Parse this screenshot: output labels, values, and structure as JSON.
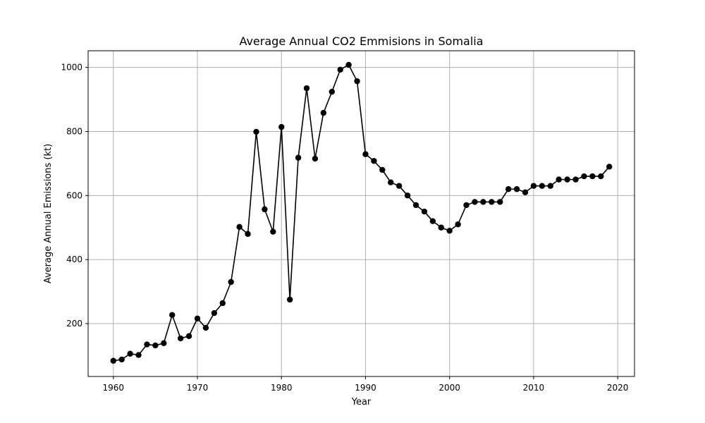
{
  "chart_data": {
    "type": "line",
    "title": "Average Annual CO2 Emmisions in Somalia",
    "xlabel": "Year",
    "ylabel": "Average Annual Emissions (kt)",
    "xlim": [
      1957,
      2022
    ],
    "ylim": [
      35,
      1052
    ],
    "xticks": [
      1960,
      1970,
      1980,
      1990,
      2000,
      2010,
      2020
    ],
    "yticks": [
      200,
      400,
      600,
      800,
      1000
    ],
    "grid": true,
    "line_color": "#000000",
    "series": [
      {
        "x": [
          1960,
          1961,
          1962,
          1963,
          1964,
          1965,
          1966,
          1967,
          1968,
          1969,
          1970,
          1971,
          1972,
          1973,
          1974,
          1975,
          1976,
          1977,
          1978,
          1979,
          1980,
          1981,
          1982,
          1983,
          1984,
          1985,
          1986,
          1987,
          1988,
          1989,
          1990,
          1991,
          1992,
          1993,
          1994,
          1995,
          1996,
          1997,
          1998,
          1999,
          2000,
          2001,
          2002,
          2003,
          2004,
          2005,
          2006,
          2007,
          2008,
          2009,
          2010,
          2011,
          2012,
          2013,
          2014,
          2015,
          2016,
          2017,
          2018,
          2019
        ],
        "values": [
          84,
          88,
          106,
          102,
          135,
          132,
          139,
          227,
          154,
          161,
          216,
          187,
          233,
          264,
          330,
          502,
          480,
          799,
          557,
          487,
          814,
          275,
          718,
          935,
          715,
          858,
          924,
          993,
          1008,
          957,
          729,
          708,
          680,
          641,
          630,
          600,
          570,
          550,
          520,
          500,
          490,
          510,
          570,
          580,
          580,
          580,
          580,
          620,
          620,
          610,
          630,
          630,
          630,
          650,
          650,
          650,
          660,
          660,
          660,
          690
        ]
      }
    ]
  }
}
